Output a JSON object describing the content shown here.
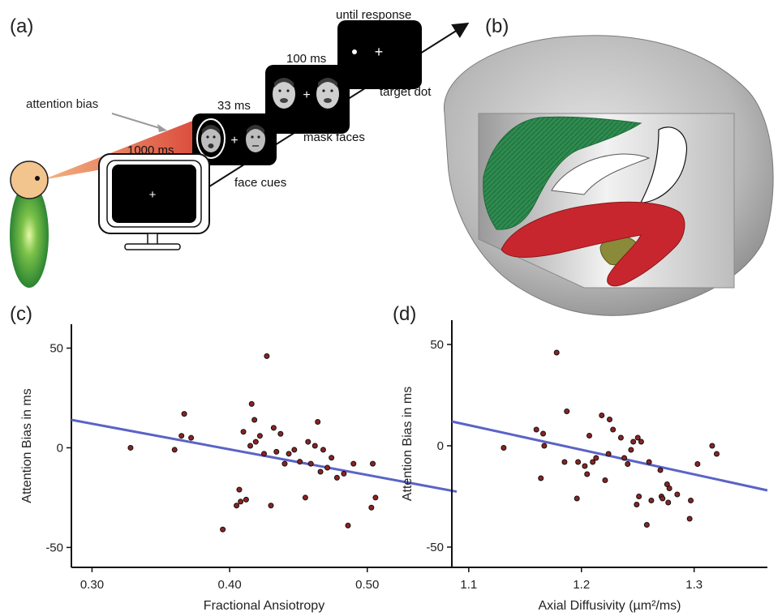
{
  "panel_labels": {
    "a": "(a)",
    "b": "(b)",
    "c": "(c)",
    "d": "(d)"
  },
  "paradigm": {
    "attention_bias_label": "attention bias",
    "timings": {
      "cue": "1000 ms",
      "mask": "33 ms",
      "target": "100 ms",
      "response": "until response"
    },
    "screen_labels": {
      "cue": "face cues",
      "mask": "mask faces",
      "target": "target dot"
    },
    "fixation_symbol": "+"
  },
  "colors": {
    "regression_line": "#5b63c6",
    "point_fill": "#8b2323",
    "tract_green": "#2e8b4f",
    "tract_red": "#c8262e",
    "brain_gray": "#bdbdbd"
  },
  "chart_data": [
    {
      "type": "scatter",
      "panel": "(c)",
      "xlabel": "Fractional Ansiotropy",
      "ylabel": "Attention Bias in ms",
      "xlim": [
        0.285,
        0.565
      ],
      "ylim": [
        -60,
        62
      ],
      "xticks": [
        0.3,
        0.4,
        0.5
      ],
      "xtick_labels": [
        "0.30",
        "0.40",
        "0.50"
      ],
      "yticks": [
        50,
        0,
        -50
      ],
      "ytick_labels": [
        "50",
        "0",
        "-50"
      ],
      "points": {
        "x": [
          0.328,
          0.36,
          0.365,
          0.367,
          0.372,
          0.395,
          0.405,
          0.407,
          0.408,
          0.41,
          0.412,
          0.415,
          0.416,
          0.418,
          0.419,
          0.422,
          0.425,
          0.427,
          0.43,
          0.432,
          0.434,
          0.437,
          0.44,
          0.443,
          0.447,
          0.451,
          0.455,
          0.457,
          0.459,
          0.462,
          0.464,
          0.466,
          0.468,
          0.471,
          0.474,
          0.478,
          0.483,
          0.486,
          0.49,
          0.503,
          0.504,
          0.506
        ],
        "y": [
          0,
          -1,
          6,
          17,
          5,
          -41,
          -29,
          -21,
          -27,
          8,
          -26,
          1,
          22,
          14,
          3,
          6,
          -3,
          46,
          -29,
          10,
          -2,
          7,
          -8,
          -3,
          -1,
          -7,
          -25,
          3,
          -8,
          1,
          13,
          -12,
          -1,
          -10,
          -5,
          -15,
          -13,
          -39,
          -8,
          -30,
          -8,
          -25
        ]
      },
      "fit_line": {
        "x": [
          0.285,
          0.565
        ],
        "y": [
          14,
          -22
        ]
      }
    },
    {
      "type": "scatter",
      "panel": "(d)",
      "xlabel": "Axial Diffusivity (µm²/ms)",
      "ylabel": "Attention Bias in ms",
      "xlim": [
        1.085,
        1.365
      ],
      "ylim": [
        -60,
        62
      ],
      "xticks": [
        1.1,
        1.2,
        1.3
      ],
      "xtick_labels": [
        "1.1",
        "1.2",
        "1.3"
      ],
      "yticks": [
        50,
        0,
        -50
      ],
      "ytick_labels": [
        "50",
        "0",
        "-50"
      ],
      "points": {
        "x": [
          1.131,
          1.16,
          1.164,
          1.166,
          1.167,
          1.178,
          1.185,
          1.187,
          1.196,
          1.197,
          1.203,
          1.205,
          1.207,
          1.21,
          1.213,
          1.218,
          1.221,
          1.224,
          1.225,
          1.228,
          1.235,
          1.238,
          1.241,
          1.244,
          1.246,
          1.249,
          1.25,
          1.251,
          1.253,
          1.258,
          1.26,
          1.262,
          1.27,
          1.271,
          1.272,
          1.276,
          1.277,
          1.278,
          1.285,
          1.296,
          1.297,
          1.303,
          1.316,
          1.32
        ],
        "y": [
          -1,
          8,
          -16,
          6,
          0,
          46,
          -8,
          17,
          -26,
          -8,
          -10,
          -14,
          5,
          -8,
          -6,
          15,
          -17,
          -4,
          13,
          8,
          4,
          -6,
          -9,
          -2,
          2,
          -29,
          4,
          -25,
          2,
          -39,
          -8,
          -27,
          -12,
          -25,
          -26,
          -19,
          -28,
          -21,
          -24,
          -36,
          -27,
          -9,
          0,
          -4
        ]
      },
      "fit_line": {
        "x": [
          1.085,
          1.365
        ],
        "y": [
          12,
          -22
        ]
      }
    }
  ]
}
